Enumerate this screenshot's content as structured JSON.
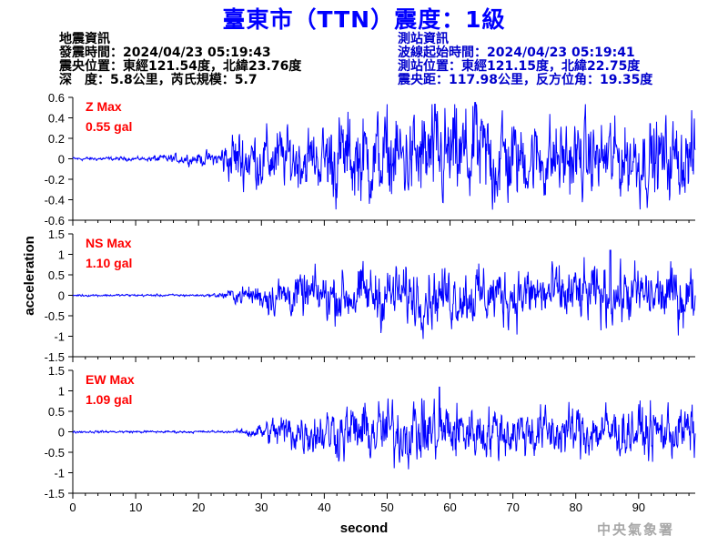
{
  "header": {
    "title": "臺東市（TTN）震度：1級"
  },
  "earthquake_info": {
    "heading": "地震資訊",
    "origin_time": "發震時間：2024/04/23 05:19:43",
    "epicenter": "震央位置：東經121.54度，北緯23.76度",
    "depth_magnitude": "深　度：5.8公里，芮氏規模：5.7"
  },
  "station_info": {
    "heading": "測站資訊",
    "wave_start": "波線起始時間：2024/04/23 05:19:41",
    "location": "測站位置：東經121.15度，北緯22.75度",
    "distance": "震央距：117.98公里，反方位角：19.35度"
  },
  "footer": {
    "agency": "中央氣象署"
  },
  "chart_data": {
    "type": "line",
    "xlabel": "second",
    "ylabel": "acceleration",
    "xlim": [
      0,
      99
    ],
    "x_ticks": [
      0,
      10,
      20,
      30,
      40,
      50,
      60,
      70,
      80,
      90
    ],
    "line_color": "#0000ff",
    "label_color": "#ff0000",
    "panels": [
      {
        "name": "Z",
        "max_label": "Z Max",
        "max_value": "0.55 gal",
        "peak": 0.55,
        "ylim": [
          -0.6,
          0.6
        ],
        "y_ticks": [
          0.6,
          0.4,
          0.2,
          0,
          -0.2,
          -0.4,
          -0.6
        ],
        "y_tick_labels": [
          "0.6",
          "0.4",
          "0.2",
          "0",
          "-0.2",
          "-0.4",
          "-0.6"
        ]
      },
      {
        "name": "NS",
        "max_label": "NS Max",
        "max_value": "1.10 gal",
        "peak": 1.1,
        "ylim": [
          -1.5,
          1.5
        ],
        "y_ticks": [
          1.5,
          1,
          0.5,
          0,
          -0.5,
          -1,
          -1.5
        ],
        "y_tick_labels": [
          "1.5",
          "1",
          "0.5",
          "0",
          "-0.5",
          "-1",
          "-1.5"
        ]
      },
      {
        "name": "EW",
        "max_label": "EW Max",
        "max_value": "1.09 gal",
        "peak": 1.09,
        "ylim": [
          -1.5,
          1.5
        ],
        "y_ticks": [
          1.5,
          1,
          0.5,
          0,
          -0.5,
          -1,
          -1.5
        ],
        "y_tick_labels": [
          "1.5",
          "1",
          "0.5",
          "0",
          "-0.5",
          "-1",
          "-1.5"
        ]
      }
    ]
  }
}
